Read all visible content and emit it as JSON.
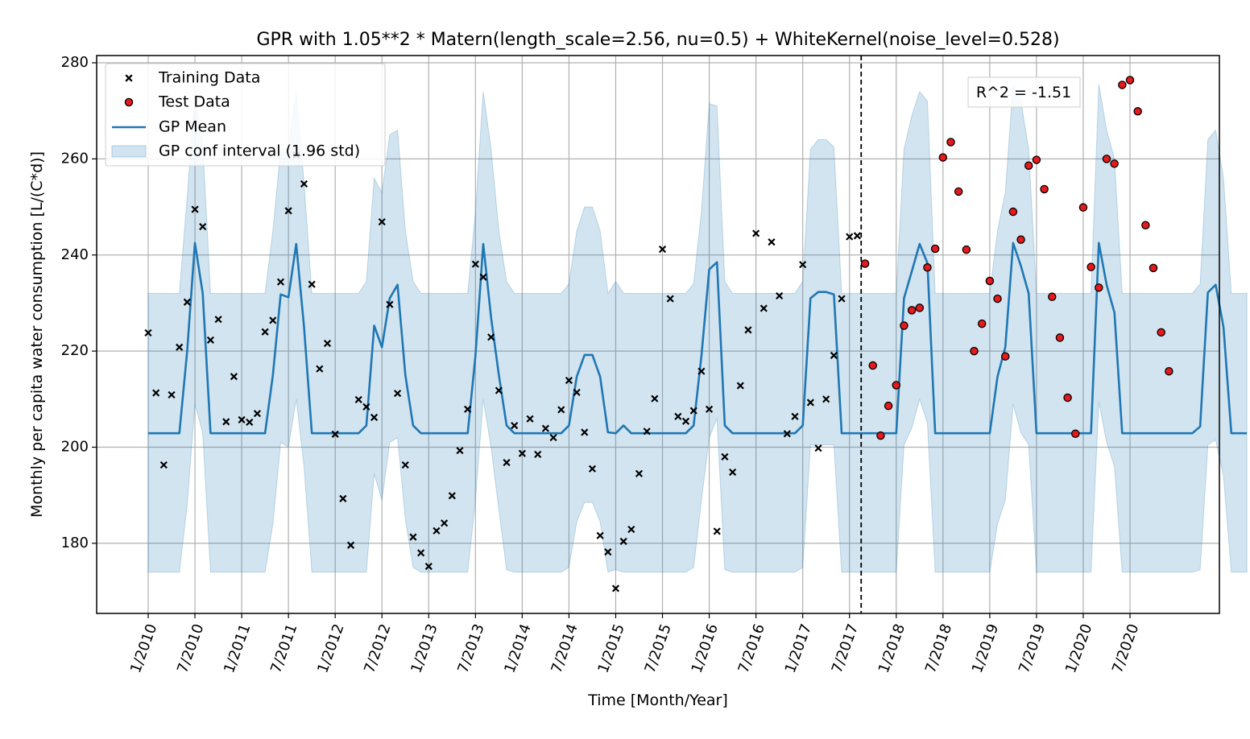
{
  "chart_data": {
    "type": "line",
    "title": "GPR with 1.05**2 * Matern(length_scale=2.56, nu=0.5) + WhiteKernel(noise_level=0.528)",
    "xlabel": "Time [Month/Year]",
    "ylabel": "Monthly per capita water consumption [L/(C*d)]",
    "ylim": [
      165,
      282
    ],
    "yticks": [
      180,
      200,
      220,
      240,
      260,
      280
    ],
    "x_months_range": [
      0,
      131
    ],
    "xtick_months": [
      0,
      6,
      12,
      18,
      24,
      30,
      36,
      42,
      48,
      54,
      60,
      66,
      72,
      78,
      84,
      90,
      96,
      102,
      108,
      114,
      120,
      126
    ],
    "xtick_labels": [
      "1/2010",
      "7/2010",
      "1/2011",
      "7/2011",
      "1/2012",
      "7/2012",
      "1/2013",
      "7/2013",
      "1/2014",
      "7/2014",
      "1/2015",
      "7/2015",
      "1/2016",
      "7/2016",
      "1/2017",
      "7/2017",
      "1/2018",
      "7/2018",
      "1/2019",
      "7/2019",
      "1/2020",
      "7/2020"
    ],
    "grid": true,
    "legend_position": "upper-left",
    "split_line_month": 92,
    "annotation": "R^2 = -1.51",
    "series": [
      {
        "name": "Training Data",
        "marker": "x",
        "color": "#000000",
        "values": [
          223.8,
          211.3,
          196.3,
          210.9,
          220.8,
          230.2,
          249.5,
          245.9,
          222.3,
          226.6,
          205.3,
          214.7,
          205.7,
          205.2,
          207,
          224,
          226.4,
          234.4,
          249.2,
          260.8,
          254.8,
          233.9,
          216.3,
          221.6,
          202.7,
          189.3,
          179.6,
          209.9,
          208.4,
          206.2,
          246.9,
          229.7,
          211.2,
          196.3,
          181.3,
          178,
          175.2,
          182.6,
          184.2,
          189.9,
          199.3,
          207.9,
          238.1,
          235.4,
          222.9,
          211.8,
          196.8,
          204.5,
          198.7,
          205.9,
          198.5,
          203.9,
          202,
          207.8,
          213.9,
          211.4,
          203.1,
          195.5,
          181.6,
          178.2,
          170.6,
          180.4,
          182.9,
          194.5,
          203.3,
          210.1,
          241.2,
          230.9,
          206.4,
          205.4,
          207.6,
          215.8,
          207.9,
          182.5,
          198,
          194.8,
          212.8,
          224.4,
          244.5,
          228.9,
          242.7,
          231.5,
          202.8,
          206.4,
          238,
          209.3,
          199.8,
          210,
          219.1,
          230.9,
          243.8,
          244
        ]
      },
      {
        "name": "Test Data",
        "marker": "o",
        "color": "#e41a1c",
        "values": [
          238.2,
          217,
          202.4,
          208.6,
          212.9,
          225.3,
          228.5,
          229,
          237.4,
          241.3,
          260.3,
          263.5,
          253.2,
          241.1,
          220,
          225.7,
          234.6,
          230.9,
          218.9,
          249,
          243.2,
          258.6,
          259.8,
          253.7,
          231.3,
          222.8,
          210.3,
          202.8,
          249.9,
          237.5,
          233.2,
          260,
          259,
          275.4,
          276.4,
          269.9,
          246.2,
          237.3,
          223.9,
          215.8
        ]
      },
      {
        "name": "GP Mean",
        "color": "#1f77b4",
        "values": [
          202.9,
          202.9,
          202.9,
          202.9,
          202.9,
          220,
          242.5,
          232,
          202.9,
          202.9,
          202.9,
          202.9,
          202.9,
          202.9,
          202.9,
          202.9,
          215,
          231.8,
          231.2,
          242.3,
          225,
          202.9,
          202.9,
          202.9,
          202.9,
          202.9,
          202.9,
          202.9,
          204.5,
          225.3,
          220.8,
          231,
          233.8,
          215,
          204.5,
          202.9,
          202.9,
          202.9,
          202.9,
          202.9,
          202.9,
          202.9,
          219,
          242.3,
          227,
          215,
          204.5,
          202.9,
          202.9,
          202.9,
          202.9,
          202.9,
          202.9,
          202.9,
          204.5,
          214.7,
          219.2,
          219.2,
          214.7,
          203.1,
          202.9,
          204.5,
          202.9,
          202.9,
          202.9,
          202.9,
          202.9,
          202.9,
          202.9,
          202.9,
          204.5,
          219,
          237,
          238.5,
          204.5,
          202.9,
          202.9,
          202.9,
          202.9,
          202.9,
          202.9,
          202.9,
          202.9,
          202.9,
          204.5,
          231,
          232.3,
          232.3,
          231.8,
          202.9,
          202.9,
          202.9,
          202.9,
          202.9,
          202.9,
          202.9,
          202.9,
          231,
          236.6,
          242.3,
          238.3,
          202.9,
          202.9,
          202.9,
          202.9,
          202.9,
          202.9,
          202.9,
          202.9,
          214.7,
          220.8,
          242.5,
          237.7,
          232,
          202.9,
          202.9,
          202.9,
          202.9,
          202.9,
          202.9,
          202.9,
          202.9,
          242.5,
          233.8,
          228,
          202.9,
          202.9,
          202.9,
          202.9,
          202.9,
          202.9,
          202.9,
          202.9,
          202.9,
          202.9,
          204.3,
          232.2,
          233.8,
          225,
          202.9,
          202.9,
          202.9
        ]
      },
      {
        "name": "GP conf interval (1.96 std)",
        "type": "band",
        "color": "#1f77b4",
        "band_halfwidth_months_center": [
          202.9
        ],
        "lower": [
          174,
          174,
          174,
          174,
          174,
          188,
          209,
          203,
          174,
          174,
          174,
          174,
          174,
          174,
          174,
          174,
          184,
          201,
          200,
          210,
          196,
          174,
          174,
          174,
          174,
          174,
          174,
          174,
          174,
          194.5,
          189,
          201,
          202,
          185,
          175,
          174,
          174,
          174,
          174,
          174,
          174,
          174,
          189,
          210,
          200,
          187,
          174.5,
          174,
          174,
          174,
          174,
          174,
          174,
          174,
          175,
          184.5,
          188.5,
          188.5,
          184.5,
          174,
          174.5,
          174,
          174,
          174,
          174,
          174,
          174,
          174,
          174,
          174,
          175,
          189,
          202,
          206,
          174.5,
          174,
          174,
          174,
          174,
          174,
          174,
          174,
          174,
          174,
          175,
          200.5,
          200.5,
          200.5,
          200.5,
          174,
          174,
          174,
          174,
          174,
          174,
          174,
          174,
          200.5,
          204,
          210,
          205,
          174,
          174,
          174,
          174,
          174,
          174,
          174,
          174,
          184,
          189,
          209,
          203,
          200.5,
          174,
          174,
          174,
          174,
          174,
          174,
          174,
          174,
          209.5,
          201,
          196,
          174,
          174,
          174,
          174,
          174,
          174,
          174,
          174,
          174,
          174,
          174.5,
          200.5,
          201.5,
          194,
          174,
          174,
          174
        ],
        "upper": [
          232,
          232,
          232,
          232,
          232,
          252,
          273,
          263,
          232,
          232,
          232,
          232,
          232,
          232,
          232,
          232,
          245,
          262,
          262,
          274,
          255,
          232,
          232,
          232,
          232,
          232,
          232,
          232,
          234.5,
          256,
          253,
          265,
          266,
          245,
          234.5,
          232,
          232,
          232,
          232,
          232,
          232,
          232,
          249,
          274,
          262,
          245,
          234.5,
          232,
          232,
          232,
          232,
          232,
          232,
          232,
          234,
          245,
          250,
          250,
          245,
          232,
          234.5,
          232,
          232,
          232,
          232,
          232,
          232,
          232,
          232,
          232,
          234,
          249,
          271.5,
          271,
          234.5,
          232,
          232,
          232,
          232,
          232,
          232,
          232,
          232,
          232,
          234.5,
          262,
          264,
          264,
          262.5,
          232,
          232,
          232,
          232,
          232,
          232,
          232,
          232,
          262,
          269,
          274,
          272,
          232,
          232,
          232,
          232,
          232,
          232,
          232,
          232,
          245,
          253,
          275.5,
          272,
          262,
          232,
          232,
          232,
          232,
          232,
          232,
          232,
          232,
          275.5,
          266,
          260,
          232,
          232,
          232,
          232,
          232,
          232,
          232,
          232,
          232,
          232,
          234,
          264,
          266,
          256,
          232,
          232,
          232
        ]
      }
    ]
  }
}
